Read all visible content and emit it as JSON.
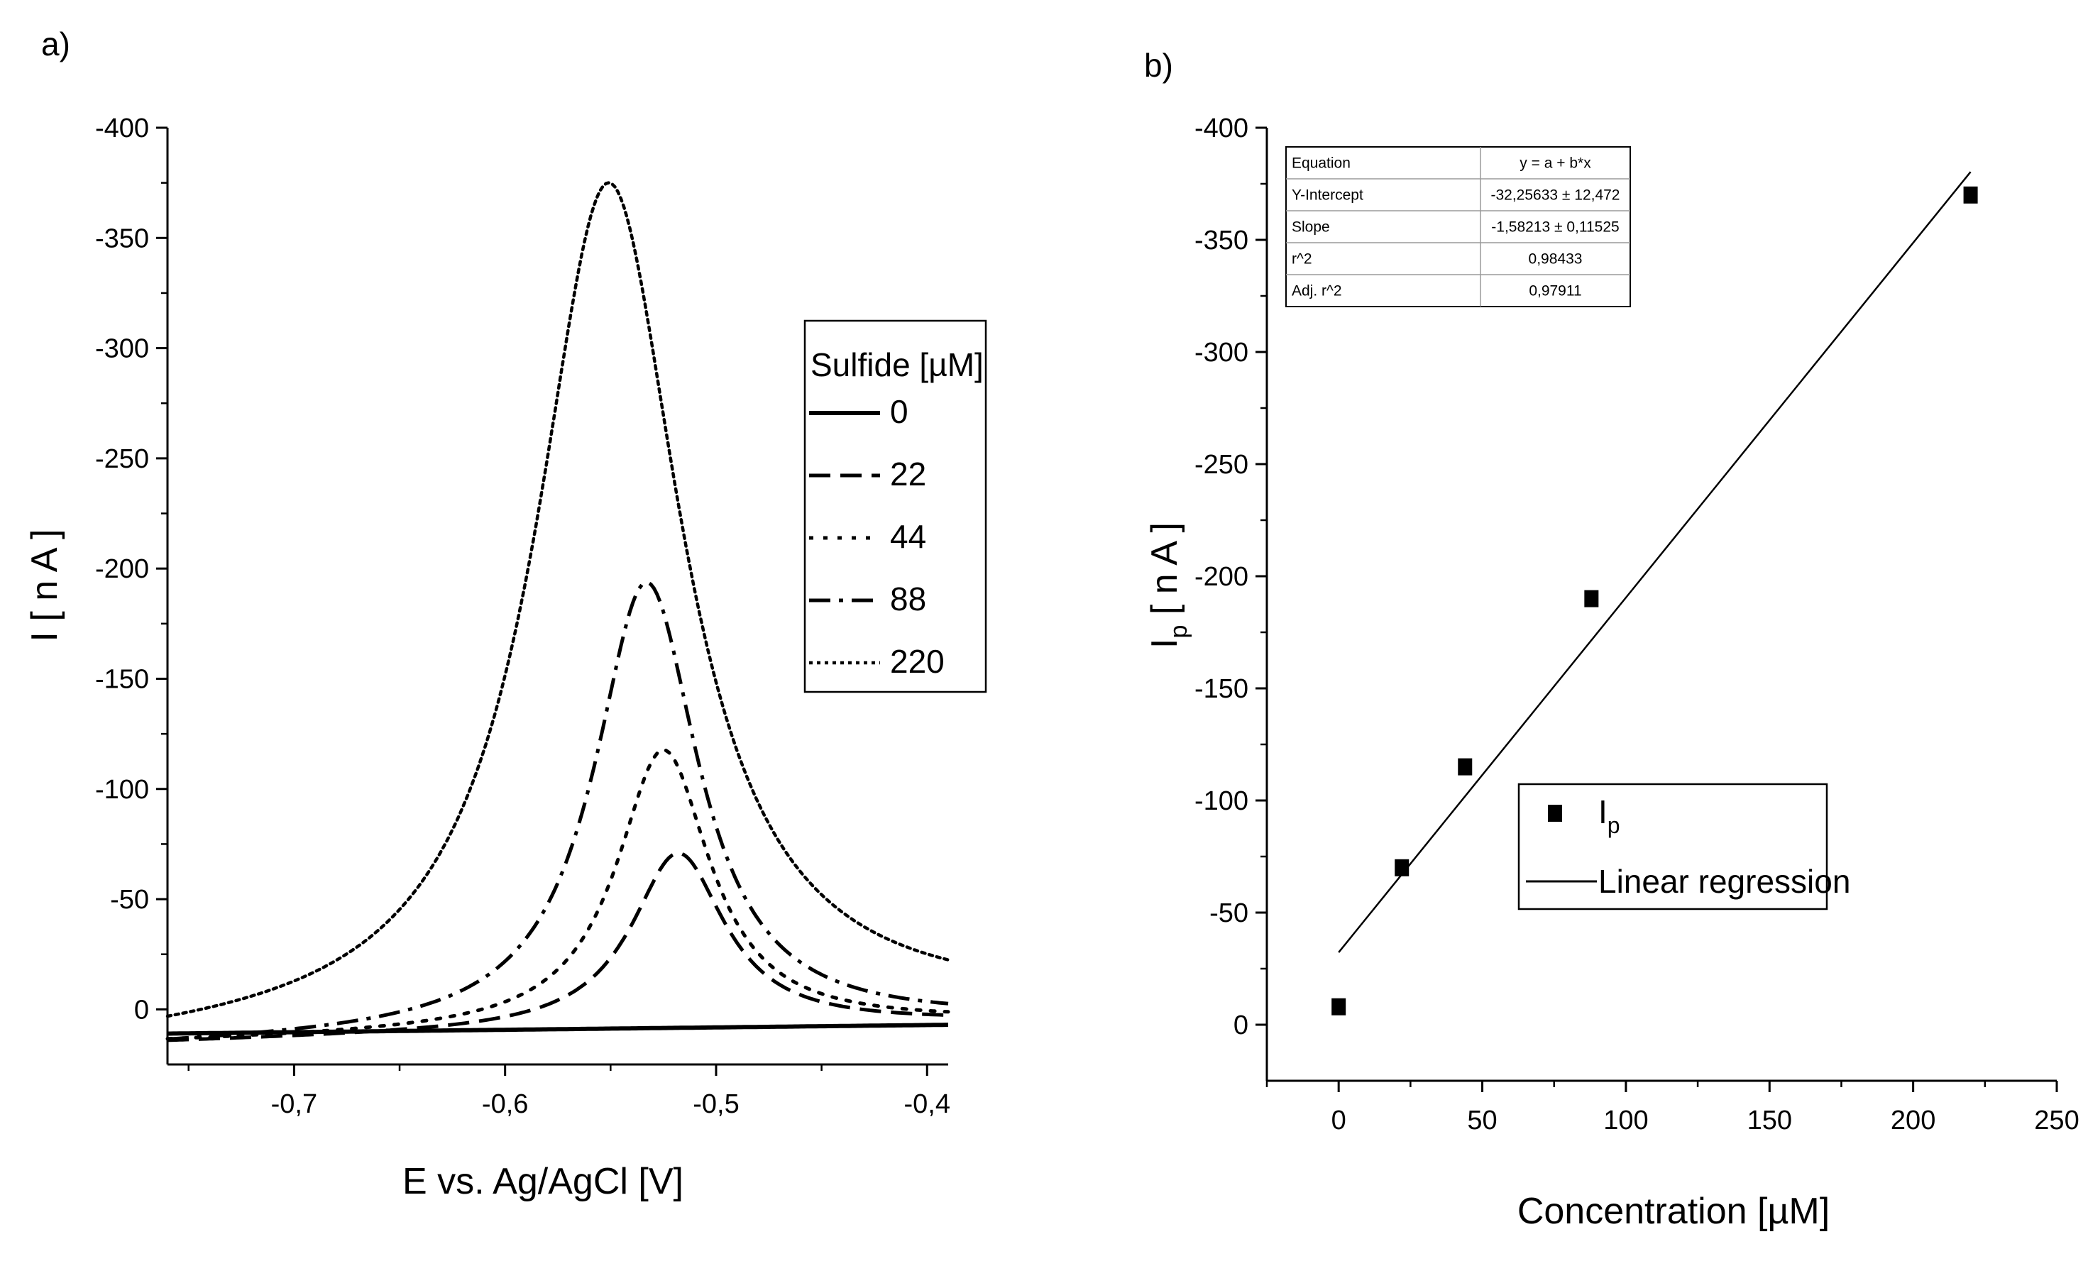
{
  "figure": {
    "panel_a_label": "a)",
    "panel_b_label": "b)"
  },
  "colors": {
    "ink": "#000000",
    "background": "#ffffff",
    "table_grid": "#9a9a9a"
  },
  "chart_data": [
    {
      "id": "a",
      "type": "line",
      "title": "",
      "xlabel": "E vs. Ag/AgCl [V]",
      "ylabel": "I [ n A ]",
      "xlim": [
        -0.76,
        -0.39
      ],
      "ylim": [
        25,
        -400
      ],
      "y_inverted": true,
      "grid": false,
      "xticks": [
        -0.7,
        -0.6,
        -0.5,
        -0.4
      ],
      "xtick_labels": [
        "-0,7",
        "-0,6",
        "-0,5",
        "-0,4"
      ],
      "yticks": [
        0,
        -50,
        -100,
        -150,
        -200,
        -250,
        -300,
        -350,
        -400
      ],
      "ytick_labels": [
        "0",
        "-50",
        "-100",
        "-150",
        "-200",
        "-250",
        "-300",
        "-350",
        "-400"
      ],
      "legend": {
        "title": "Sulfide [µM]",
        "position": "right"
      },
      "series": [
        {
          "name": "0",
          "style": "solid",
          "baseline": [
            11,
            7
          ],
          "peak_height": 0,
          "peak_x": -0.52,
          "peak_width": 0.03
        },
        {
          "name": "22",
          "style": "dash",
          "baseline": [
            15,
            6
          ],
          "peak_height": -80,
          "peak_x": -0.518,
          "peak_width": 0.027
        },
        {
          "name": "44",
          "style": "dot",
          "baseline": [
            15,
            6
          ],
          "peak_height": -127,
          "peak_x": -0.525,
          "peak_width": 0.027
        },
        {
          "name": "88",
          "style": "dashdot",
          "baseline": [
            17,
            6
          ],
          "peak_height": -204,
          "peak_x": -0.533,
          "peak_width": 0.03
        },
        {
          "name": "220",
          "style": "shortdot",
          "baseline": [
            18,
            2
          ],
          "peak_height": -384,
          "peak_x": -0.551,
          "peak_width": 0.042
        }
      ]
    },
    {
      "id": "b",
      "type": "scatter",
      "title": "",
      "xlabel": "Concentration [µM]",
      "ylabel": "I",
      "ylabel_subscript": "p",
      "ylabel_unit": " [ n A ]",
      "xlim": [
        -25,
        250
      ],
      "ylim": [
        25,
        -400
      ],
      "y_inverted": true,
      "grid": false,
      "xticks": [
        0,
        50,
        100,
        150,
        200,
        250
      ],
      "xtick_labels": [
        "0",
        "50",
        "100",
        "150",
        "200",
        "250"
      ],
      "yticks": [
        0,
        -50,
        -100,
        -150,
        -200,
        -250,
        -300,
        -350,
        -400
      ],
      "ytick_labels": [
        "0",
        "-50",
        "-100",
        "-150",
        "-200",
        "-250",
        "-300",
        "-350",
        "-400"
      ],
      "points": {
        "x": [
          0,
          22,
          44,
          88,
          220
        ],
        "y": [
          -8,
          -70,
          -115,
          -190,
          -370
        ]
      },
      "regression": {
        "intercept": -32.25633,
        "slope": -1.58213,
        "x_range": [
          0,
          220
        ]
      },
      "legend": {
        "position": "center",
        "entries": [
          {
            "label": "I",
            "subscript": "p",
            "marker": "square"
          },
          {
            "label": "Linear regression",
            "marker": "line"
          }
        ]
      },
      "table": {
        "rows": [
          [
            "Equation",
            "y = a + b*x"
          ],
          [
            "Y-Intercept",
            "-32,25633 ± 12,472"
          ],
          [
            "Slope",
            "-1,58213 ± 0,11525"
          ],
          [
            "r^2",
            "0,98433"
          ],
          [
            "Adj. r^2",
            "0,97911"
          ]
        ]
      }
    }
  ]
}
